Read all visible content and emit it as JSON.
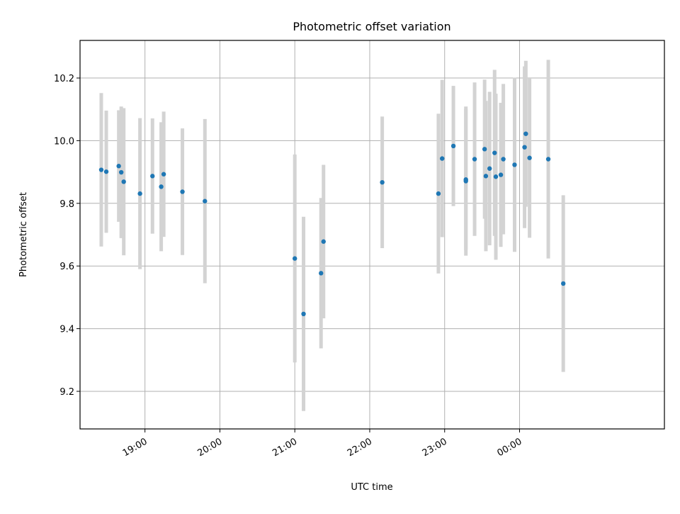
{
  "chart_data": {
    "type": "scatter",
    "title": "Photometric offset variation",
    "xlabel": "UTC time",
    "ylabel": "Photometric offset",
    "x_unit": "UTC time, hours after 18:00 (times past midnight continue beyond 24:00)",
    "xlim": [
      "18:08",
      "01:56"
    ],
    "ylim": [
      9.08,
      10.32
    ],
    "x_ticks": [
      "19:00",
      "20:00",
      "21:00",
      "22:00",
      "23:00",
      "00:00"
    ],
    "y_ticks": [
      "9.2",
      "9.4",
      "9.6",
      "9.8",
      "10.0",
      "10.2"
    ],
    "grid": true,
    "colors": {
      "points": "#1f77b4",
      "error_bars": "#d3d3d3",
      "grid": "#b0b0b0",
      "axes": "#000000"
    },
    "points": [
      {
        "t": "18:25",
        "y": 9.907,
        "err": 0.245
      },
      {
        "t": "18:29",
        "y": 9.901,
        "err": 0.195
      },
      {
        "t": "18:39",
        "y": 9.919,
        "err": 0.178
      },
      {
        "t": "18:41",
        "y": 9.899,
        "err": 0.21
      },
      {
        "t": "18:43",
        "y": 9.869,
        "err": 0.235
      },
      {
        "t": "18:56",
        "y": 9.831,
        "err": 0.241
      },
      {
        "t": "19:06",
        "y": 9.887,
        "err": 0.184
      },
      {
        "t": "19:13",
        "y": 9.853,
        "err": 0.206
      },
      {
        "t": "19:15",
        "y": 9.893,
        "err": 0.2
      },
      {
        "t": "19:30",
        "y": 9.837,
        "err": 0.202
      },
      {
        "t": "19:48",
        "y": 9.807,
        "err": 0.262
      },
      {
        "t": "21:00",
        "y": 9.624,
        "err": 0.332
      },
      {
        "t": "21:07",
        "y": 9.447,
        "err": 0.31
      },
      {
        "t": "21:21",
        "y": 9.577,
        "err": 0.24
      },
      {
        "t": "21:23",
        "y": 9.678,
        "err": 0.245
      },
      {
        "t": "22:10",
        "y": 9.867,
        "err": 0.21
      },
      {
        "t": "22:55",
        "y": 9.831,
        "err": 0.255
      },
      {
        "t": "22:58",
        "y": 9.943,
        "err": 0.251
      },
      {
        "t": "23:07",
        "y": 9.983,
        "err": 0.192
      },
      {
        "t": "23:17",
        "y": 9.871,
        "err": 0.238
      },
      {
        "t": "23:17",
        "y": 9.876,
        "err": 0.225
      },
      {
        "t": "23:24",
        "y": 9.941,
        "err": 0.245
      },
      {
        "t": "23:32",
        "y": 9.973,
        "err": 0.222
      },
      {
        "t": "23:33",
        "y": 9.887,
        "err": 0.24
      },
      {
        "t": "23:36",
        "y": 9.911,
        "err": 0.245
      },
      {
        "t": "23:40",
        "y": 9.961,
        "err": 0.265
      },
      {
        "t": "23:41",
        "y": 9.885,
        "err": 0.265
      },
      {
        "t": "23:45",
        "y": 9.891,
        "err": 0.23
      },
      {
        "t": "23:47",
        "y": 9.941,
        "err": 0.24
      },
      {
        "t": "23:56",
        "y": 9.923,
        "err": 0.278
      },
      {
        "t": "00:04",
        "y": 9.979,
        "err": 0.258
      },
      {
        "t": "00:05",
        "y": 10.022,
        "err": 0.233
      },
      {
        "t": "00:08",
        "y": 9.945,
        "err": 0.255
      },
      {
        "t": "00:23",
        "y": 9.941,
        "err": 0.317
      },
      {
        "t": "00:35",
        "y": 9.544,
        "err": 0.282
      }
    ]
  }
}
